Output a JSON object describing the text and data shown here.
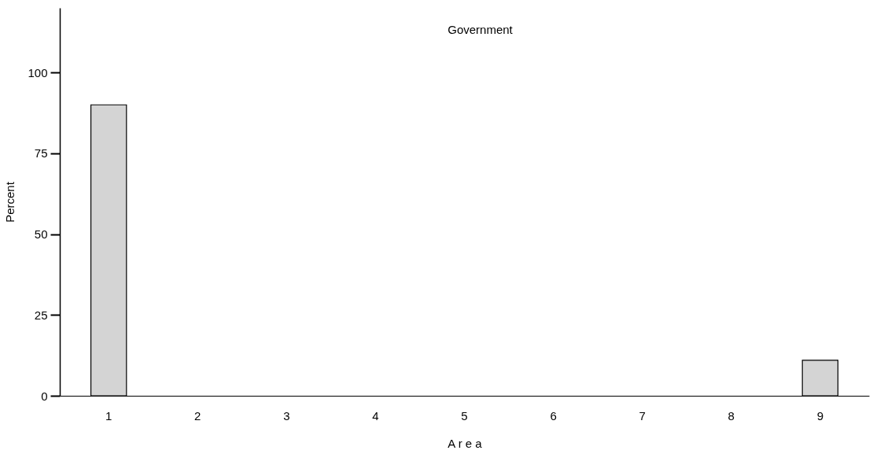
{
  "chart_data": {
    "type": "bar",
    "title": "Government",
    "xlabel": "A r e a",
    "ylabel": "Percent",
    "categories": [
      "1",
      "2",
      "3",
      "4",
      "5",
      "6",
      "7",
      "8",
      "9"
    ],
    "values": [
      90,
      0,
      0,
      0,
      0,
      0,
      0,
      0,
      11
    ],
    "color": "#d4d4d4",
    "ylim": [
      0,
      120
    ],
    "yticks": [
      0,
      25,
      50,
      75,
      100
    ],
    "grid": false
  }
}
